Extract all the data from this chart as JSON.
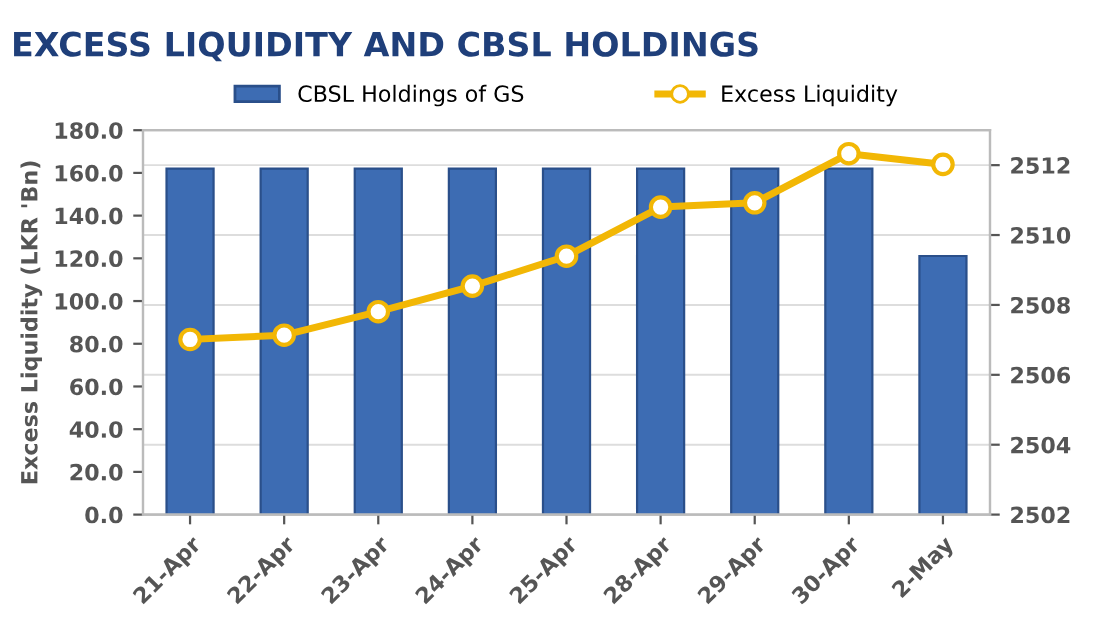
{
  "chart_data": {
    "type": "bar",
    "title": "EXCESS LIQUIDITY AND CBSL HOLDINGS",
    "ylabel": "Excess Liquidity (LKR 'Bn)",
    "categories": [
      "21-Apr",
      "22-Apr",
      "23-Apr",
      "24-Apr",
      "25-Apr",
      "28-Apr",
      "29-Apr",
      "30-Apr",
      "2-May"
    ],
    "series": [
      {
        "name": "CBSL Holdings of GS",
        "axis": "y2",
        "color": "#3d6cb3",
        "values": [
          2511.9,
          2511.9,
          2511.9,
          2511.9,
          2511.9,
          2511.9,
          2511.9,
          2511.9,
          2509.4
        ]
      },
      {
        "name": "Excess Liquidity",
        "type": "line",
        "color": "#f2b705",
        "marker": "circle",
        "values": [
          82,
          84,
          95,
          107,
          121,
          144,
          146,
          169,
          164
        ]
      }
    ],
    "ylim": [
      0,
      180
    ],
    "yticks": [
      {
        "value": 0,
        "label": "0.0"
      },
      {
        "value": 20,
        "label": "20.0"
      },
      {
        "value": 40,
        "label": "40.0"
      },
      {
        "value": 60,
        "label": "60.0"
      },
      {
        "value": 80,
        "label": "80.0"
      },
      {
        "value": 100,
        "label": "100.0"
      },
      {
        "value": 120,
        "label": "120.0"
      },
      {
        "value": 140,
        "label": "140.0"
      },
      {
        "value": 160,
        "label": "160.0"
      },
      {
        "value": 180,
        "label": "180.0"
      }
    ],
    "y2lim": [
      2502,
      2513
    ],
    "y2ticks": [
      2502,
      2504,
      2506,
      2508,
      2510,
      2512
    ],
    "grid": "y",
    "legend": "top"
  }
}
